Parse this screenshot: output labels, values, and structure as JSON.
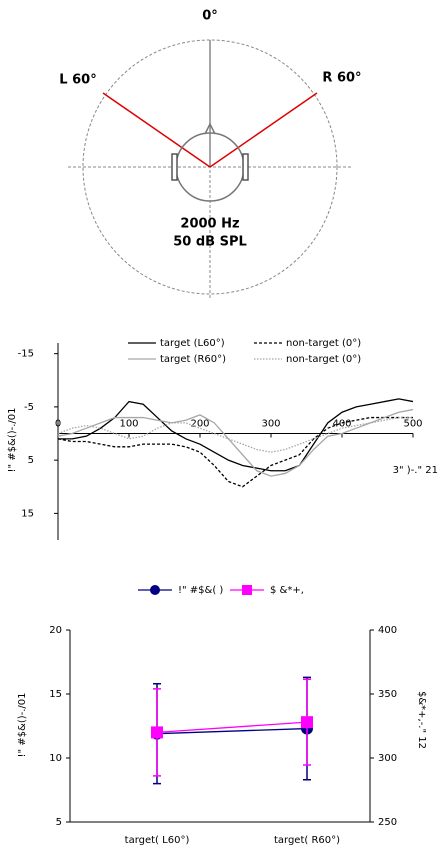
{
  "diagram": {
    "front_label": "0°",
    "left_label": "L 60°",
    "right_label": "R 60°",
    "frequency": "2000 Hz",
    "level": "50 dB SPL"
  },
  "chart_data": [
    {
      "type": "line",
      "x_label": "3\" )-.\" 21",
      "y_label": "!\" #$&()-./01",
      "x": [
        0,
        20,
        40,
        60,
        80,
        100,
        120,
        140,
        160,
        180,
        200,
        220,
        240,
        260,
        280,
        300,
        320,
        340,
        360,
        380,
        400,
        420,
        440,
        460,
        480,
        500
      ],
      "xlim": [
        0,
        500
      ],
      "xticks": [
        0,
        100,
        200,
        300,
        400,
        500
      ],
      "ylim": [
        -17,
        20
      ],
      "yticks": [
        -15,
        -5,
        5,
        15
      ],
      "y_inverted": true,
      "series": [
        {
          "name": "target (L60°)",
          "color": "#000000",
          "dash": "solid",
          "values": [
            1,
            1,
            0.5,
            -1,
            -3,
            -6,
            -5.5,
            -3,
            -0.5,
            1,
            2,
            3.5,
            5,
            6,
            6.5,
            7,
            7,
            6,
            2,
            -2,
            -4,
            -5,
            -5.5,
            -6,
            -6.5,
            -6
          ]
        },
        {
          "name": "non-target (0°)",
          "color": "#000000",
          "dash": "dashed",
          "values": [
            1,
            1.5,
            1.5,
            2,
            2.5,
            2.5,
            2,
            2,
            2,
            2.5,
            3.5,
            6,
            9,
            10,
            8,
            6,
            5,
            4,
            1,
            -1,
            -2,
            -2.5,
            -3,
            -3,
            -3,
            -3
          ]
        },
        {
          "name": "target (R60°)",
          "color": "#a6a6a6",
          "dash": "solid",
          "values": [
            0.5,
            0,
            -1,
            -2,
            -3,
            -3,
            -3,
            -2.5,
            -2,
            -2.5,
            -3.5,
            -2,
            1,
            4,
            7,
            8,
            7.5,
            6,
            3,
            0.5,
            0,
            -1,
            -2,
            -3,
            -4,
            -4.5
          ]
        },
        {
          "name": "non-target (0°)",
          "color": "#a6a6a6",
          "dash": "dotted",
          "values": [
            0,
            -1,
            -1.5,
            -1,
            0,
            1,
            0.5,
            -1,
            -2,
            -2,
            -1,
            0,
            1,
            2,
            3,
            3.5,
            3,
            2,
            1,
            0,
            -1,
            -1.5,
            -2,
            -2.5,
            -3,
            -3
          ]
        }
      ]
    },
    {
      "type": "errorbar",
      "y_label": "!\" #$&()-./01",
      "y2_label": "$&*+,-.\" 12",
      "categories": [
        "target( L60°)",
        "target( R60°)"
      ],
      "ylim": [
        5,
        20
      ],
      "yticks": [
        5,
        10,
        15,
        20
      ],
      "y2lim": [
        250,
        400
      ],
      "y2ticks": [
        250,
        300,
        350,
        400
      ],
      "series": [
        {
          "name": "!\" #$&( )",
          "color": "#000080",
          "marker": "circle",
          "values": [
            11.9,
            12.3
          ],
          "errors": [
            3.9,
            4
          ]
        },
        {
          "name": "$ &*+,",
          "color": "#ff00ff",
          "marker": "square",
          "axis": "y2",
          "values": [
            320,
            328
          ],
          "errors": [
            34,
            33.5
          ]
        }
      ]
    }
  ]
}
